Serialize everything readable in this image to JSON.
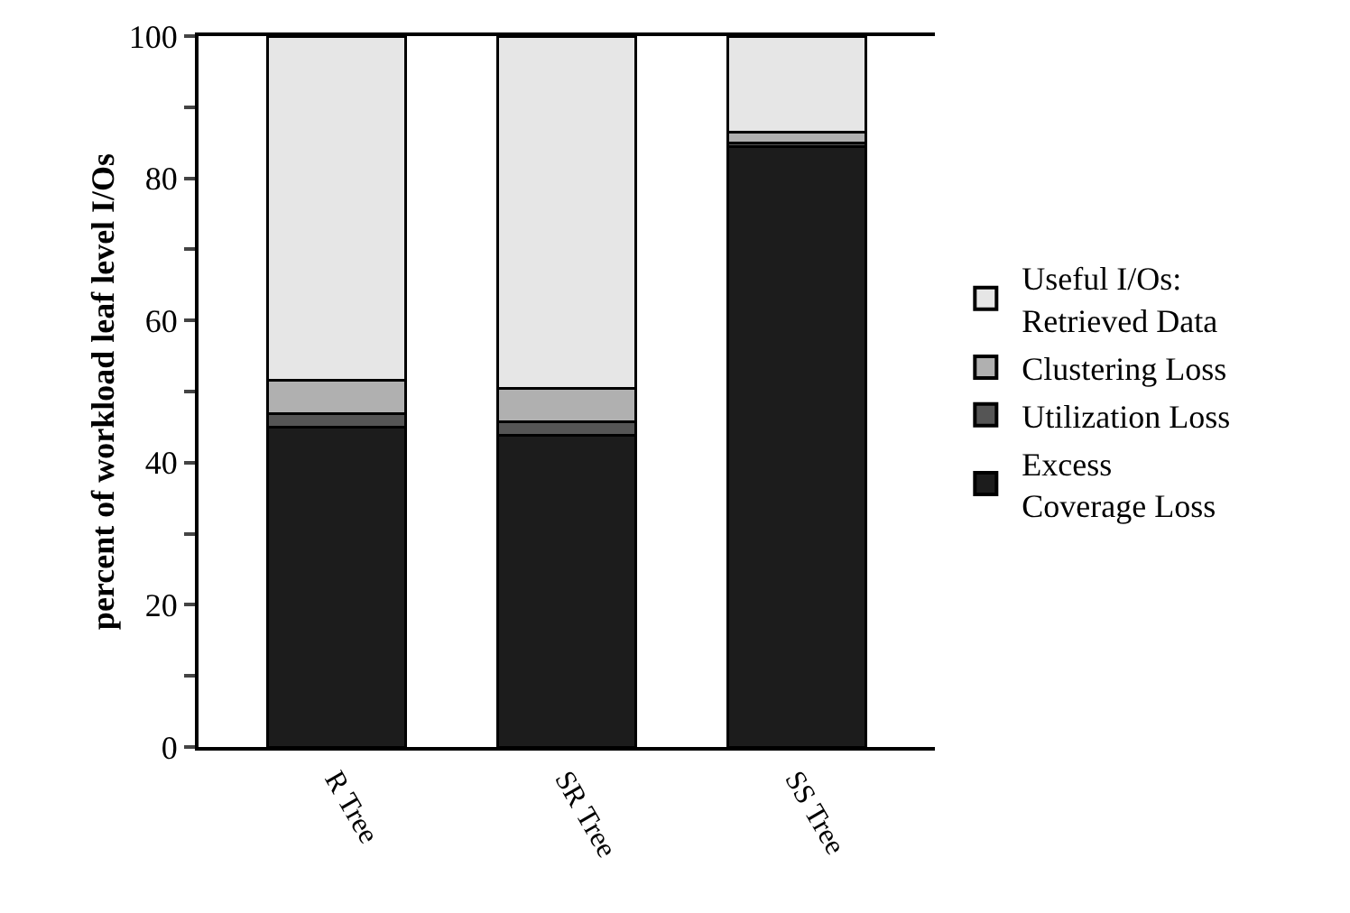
{
  "chart_data": {
    "type": "bar",
    "stacked": true,
    "ylabel": "percent of workload leaf level I/Os",
    "categories": [
      "R Tree",
      "SR Tree",
      "SS Tree"
    ],
    "series": [
      {
        "name": "Excess\nCoverage Loss",
        "color": "#1c1c1c",
        "values": [
          45.0,
          43.8,
          84.5
        ]
      },
      {
        "name": "Utilization Loss",
        "color": "#555555",
        "values": [
          1.9,
          2.0,
          0.5
        ]
      },
      {
        "name": "Clustering Loss",
        "color": "#b0b0b0",
        "values": [
          4.7,
          4.7,
          1.5
        ]
      },
      {
        "name": "Useful I/Os:\nRetrieved Data",
        "color": "#e6e6e6",
        "values": [
          48.4,
          49.5,
          13.5
        ]
      }
    ],
    "ylim": [
      0,
      100
    ],
    "yticks": [
      0,
      {
        "value": 10,
        "label": null
      },
      20,
      {
        "value": 30,
        "label": null
      },
      40,
      {
        "value": 50,
        "label": null
      },
      60,
      {
        "value": 70,
        "label": null
      },
      80,
      {
        "value": 90,
        "label": null
      },
      100
    ],
    "grid": false,
    "legend": "right"
  }
}
